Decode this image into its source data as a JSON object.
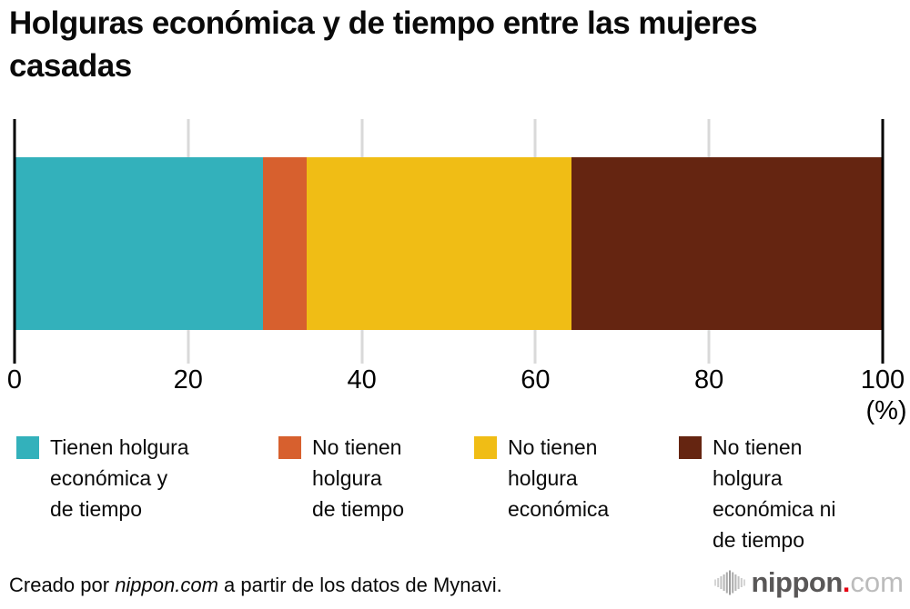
{
  "title": {
    "text": "Holguras económica y de tiempo entre las mujeres casadas"
  },
  "chart_data": {
    "type": "bar",
    "orientation": "horizontal-stacked",
    "title": "Holguras económica y de tiempo entre las mujeres casadas",
    "series": [
      {
        "name": "Tienen holgura económica y de tiempo",
        "values": [
          28.6
        ],
        "color": "#33b1bb"
      },
      {
        "name": "No tienen holgura de tiempo",
        "values": [
          5.1
        ],
        "color": "#d7602e"
      },
      {
        "name": "No tienen holgura económica",
        "values": [
          30.4
        ],
        "color": "#f0bd15"
      },
      {
        "name": "No tienen holgura económica ni de tiempo",
        "values": [
          35.9
        ],
        "color": "#652511"
      }
    ],
    "xlim": [
      0,
      100
    ],
    "xticks": [
      0,
      20,
      40,
      60,
      80,
      100
    ],
    "xlabel": "(%)",
    "grid": true,
    "legend_position": "bottom"
  },
  "axis": {
    "unit_label": "(%)"
  },
  "legend": {
    "items": [
      {
        "color": "#33b1bb",
        "lines": [
          "Tienen holgura",
          "económica y",
          "de tiempo"
        ]
      },
      {
        "color": "#d7602e",
        "lines": [
          "No tienen",
          "holgura",
          "de tiempo"
        ]
      },
      {
        "color": "#f0bd15",
        "lines": [
          "No tienen",
          "holgura",
          "económica"
        ]
      },
      {
        "color": "#652511",
        "lines": [
          "No tienen",
          "holgura",
          "económica ni",
          "de tiempo"
        ]
      }
    ]
  },
  "footer": {
    "prefix": "Creado por ",
    "source_name": "nippon.com",
    "suffix": " a partir de los datos de Mynavi."
  },
  "logo": {
    "name": "nippon",
    "dot": ".",
    "tld": "com"
  }
}
